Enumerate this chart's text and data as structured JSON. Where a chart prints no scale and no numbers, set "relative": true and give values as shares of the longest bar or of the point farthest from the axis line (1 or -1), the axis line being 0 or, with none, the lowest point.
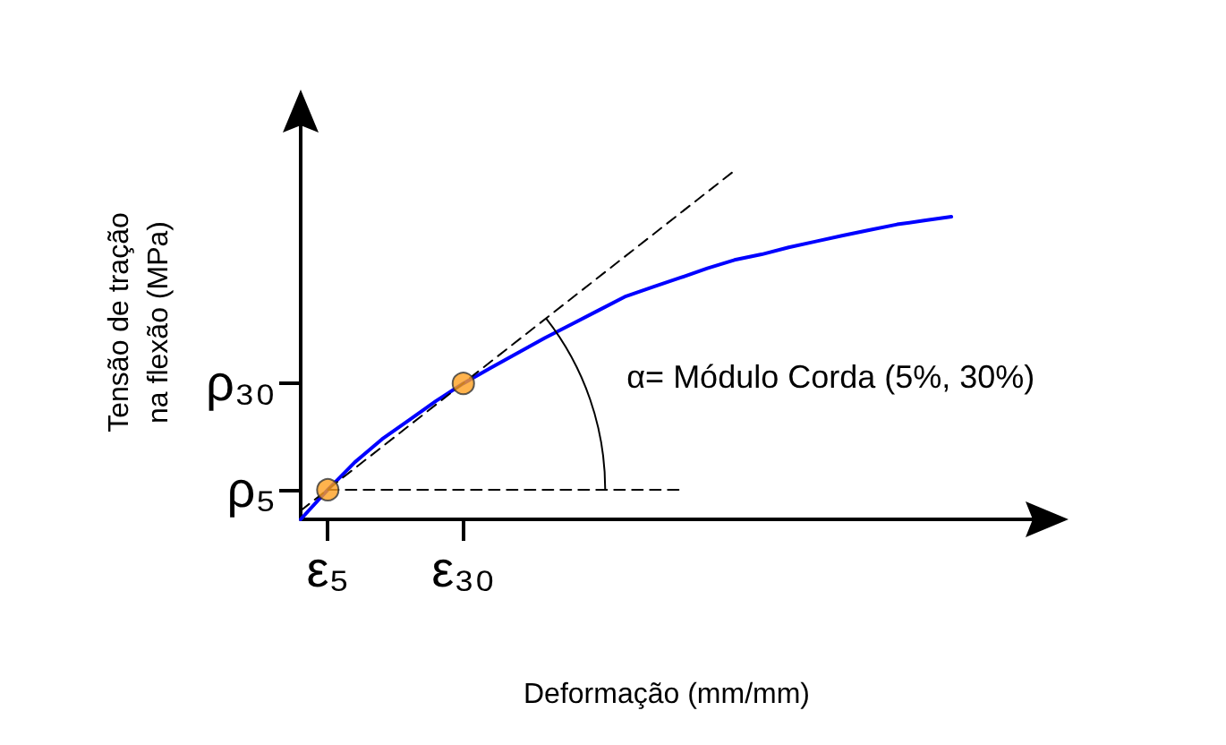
{
  "chart_data": {
    "type": "line",
    "relative": true,
    "xlabel": "Deformação (mm/mm)",
    "ylabel": "Tensão de tração na flexão (MPa)",
    "categories": [
      null,
      "ε₅",
      null,
      null,
      null,
      null,
      "ε₃₀",
      null,
      null,
      null,
      null,
      null,
      null,
      null,
      null,
      null,
      null,
      null,
      null,
      null,
      null,
      null,
      null,
      null,
      null,
      null,
      null,
      null
    ],
    "series": [
      {
        "color": "#0000ff",
        "line_style": "solid",
        "values": [
          0,
          0.085,
          0.164,
          0.23,
          0.285,
          0.34,
          0.39,
          0.434,
          0.477,
          0.52,
          0.56,
          0.6,
          0.64,
          0.667,
          0.693,
          0.72,
          0.744,
          0.76,
          0.78,
          0.797,
          0.814,
          0.83,
          0.846,
          0.857,
          0.868,
          null,
          null,
          null
        ]
      },
      {
        "color": "#000000",
        "line_style": "dashed",
        "values": [
          0.025,
          null,
          null,
          null,
          null,
          null,
          null,
          null,
          null,
          null,
          null,
          null,
          null,
          null,
          null,
          null,
          1,
          null,
          null,
          null,
          null,
          null,
          null,
          null,
          null,
          null,
          null,
          null
        ]
      },
      {
        "color": "#000000",
        "line_style": "dashed",
        "values": [
          null,
          0.085,
          null,
          null,
          null,
          null,
          null,
          null,
          null,
          null,
          null,
          null,
          null,
          null,
          0.085,
          null,
          null,
          null,
          null,
          null,
          null,
          null,
          null,
          null,
          null,
          null,
          null,
          null
        ]
      },
      {
        "type": "scatter",
        "color": "#ffa020",
        "marker": "circle",
        "values": [
          null,
          0.085,
          null,
          null,
          null,
          null,
          0.39,
          null,
          null,
          null,
          null,
          null,
          null,
          null,
          null,
          null,
          null,
          null,
          null,
          null,
          null,
          null,
          null,
          null,
          null,
          null,
          null,
          null
        ]
      }
    ],
    "annotations": [
      "α= Módulo Corda (5%, 30%)",
      "ρ₅",
      "ρ₃₀"
    ],
    "grid": false
  }
}
